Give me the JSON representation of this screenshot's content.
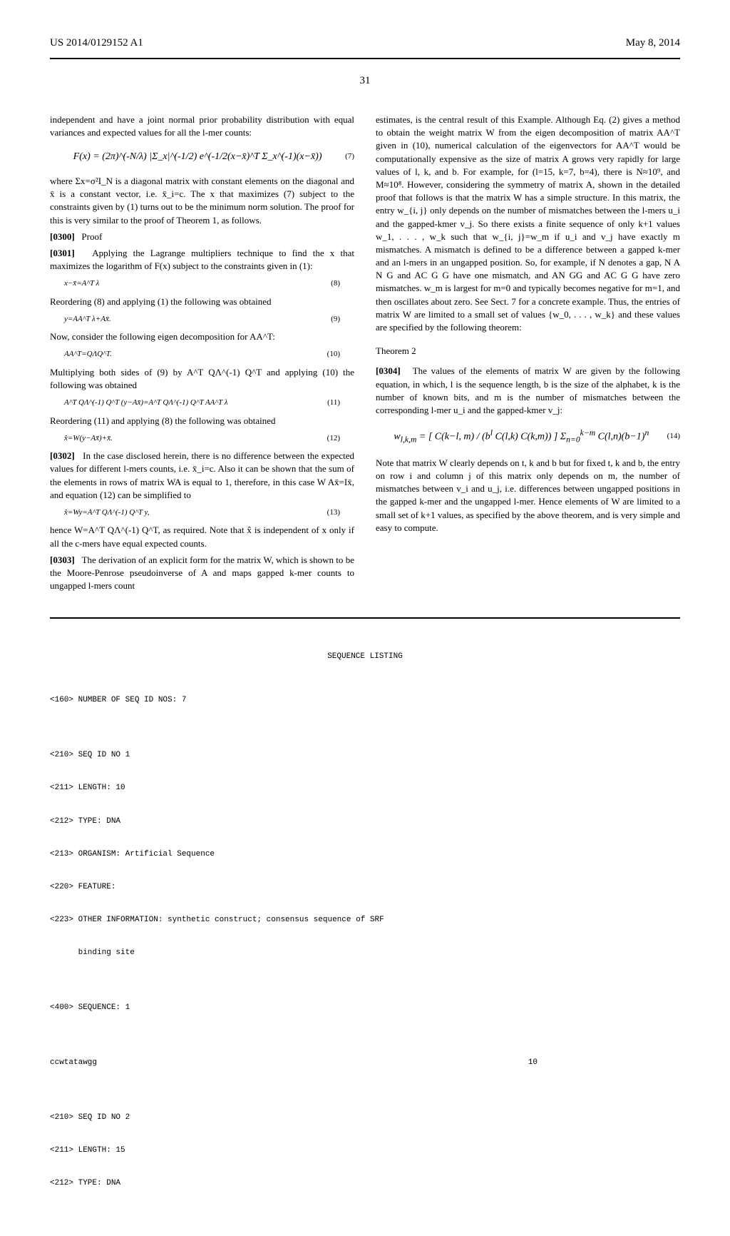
{
  "header": {
    "patent_number": "US 2014/0129152 A1",
    "date": "May 8, 2014",
    "page_number": "31"
  },
  "left_column": {
    "intro_text": "independent and have a joint normal prior probability distribution with equal variances and expected values for all the l-mer counts:",
    "eq7": "F(x) = (2π)^(-N/λ) |Σ_x|^(-1/2) e^(-1/2(x−x̄)^T Σ_x^(-1)(x−x̄))",
    "eq7_num": "(7)",
    "para_after_eq7": "where Σx=σ²I_N is a diagonal matrix with constant elements on the diagonal and x̄ is a constant vector, i.e. x̄_i=c. The x that maximizes (7) subject to the constraints given by (1) turns out to be the minimum norm solution. The proof for this is very similar to the proof of Theorem 1, as follows.",
    "para_0300_num": "[0300]",
    "para_0300": "Proof",
    "para_0301_num": "[0301]",
    "para_0301": "Applying the Lagrange multipliers technique to find the x that maximizes the logarithm of F(x) subject to the constraints given in (1):",
    "eq8": "x−x̄=A^T λ",
    "eq8_num": "(8)",
    "text_after_8": "Reordering (8) and applying (1) the following was obtained",
    "eq9": "y=AA^T λ+Ax̄.",
    "eq9_num": "(9)",
    "text_after_9": "Now, consider the following eigen decomposition for AA^T:",
    "eq10": "AA^T=QΛQ^T.",
    "eq10_num": "(10)",
    "text_after_10": "Multiplying both sides of (9) by A^T QΛ^(-1) Q^T and applying (10) the following was obtained",
    "eq11": "A^T QΛ^(-1) Q^T (y−Ax̄)=A^T QΛ^(-1) Q^T AA^T λ",
    "eq11_num": "(11)",
    "text_after_11": "Reordering (11) and applying (8) the following was obtained",
    "eq12": "x̂=W(y−Ax̄)+x̄.",
    "eq12_num": "(12)",
    "para_0302_num": "[0302]",
    "para_0302": "In the case disclosed herein, there is no difference between the expected values for different l-mers counts, i.e. x̄_i=c. Also it can be shown that the sum of the elements in rows of matrix WA is equal to 1, therefore, in this case W Ax̄=Ix̄, and equation (12) can be simplified to",
    "eq13": "x̂=Wy=A^T QΛ^(-1) Q^T y,",
    "eq13_num": "(13)",
    "text_after_13": "hence W=A^T QΛ^(-1) Q^T, as required. Note that x̂ is independent of x only if all the c-mers have equal expected counts.",
    "para_0303_num": "[0303]",
    "para_0303": "The derivation of an explicit form for the matrix W, which is shown to be the Moore-Penrose pseudoinverse of A and maps gapped k-mer counts to ungapped l-mers count"
  },
  "right_column": {
    "intro_text": "estimates, is the central result of this Example. Although Eq. (2) gives a method to obtain the weight matrix W from the eigen decomposition of matrix AA^T given in (10), numerical calculation of the eigenvectors for AA^T would be computationally expensive as the size of matrix A grows very rapidly for large values of l, k, and b. For example, for (l=15, k=7, b=4), there is N≈10⁹, and M≈10⁸. However, considering the symmetry of matrix A, shown in the detailed proof that follows is that the matrix W has a simple structure. In this matrix, the entry w_{i, j} only depends on the number of mismatches between the l-mers u_i and the gapped-kmer v_j. So there exists a finite sequence of only k+1 values w_1, . . . , w_k such that w_{i, j}=w_m if u_i and v_j have exactly m mismatches. A mismatch is defined to be a difference between a gapped k-mer and an l-mers in an ungapped position. So, for example, if N denotes a gap, N A N G and AC G G have one mismatch, and AN GG and AC G G have zero mismatches. w_m is largest for m=0 and typically becomes negative for m=1, and then oscillates about zero. See Sect. 7 for a concrete example. Thus, the entries of matrix W are limited to a small set of values {w_0, . . . , w_k} and these values are specified by the following theorem:",
    "theorem_title": "Theorem 2",
    "para_0304_num": "[0304]",
    "para_0304": "The values of the elements of matrix W are given by the following equation, in which, l is the sequence length, b is the size of the alphabet, k is the number of known bits, and m is the number of mismatches between the corresponding l-mer u_i and the gapped-kmer v_j:",
    "eq14_num": "(14)",
    "text_after_14": "Note that matrix W clearly depends on t, k and b but for fixed t, k and b, the entry on row i and column j of this matrix only depends on m, the number of mismatches between v_i and u_j, i.e. differences between ungapped positions in the gapped k-mer and the ungapped l-mer. Hence elements of W are limited to a small set of k+1 values, as specified by the above theorem, and is very simple and easy to compute."
  },
  "sequence_listing": {
    "title": "SEQUENCE LISTING",
    "line_160": "<160> NUMBER OF SEQ ID NOS: 7",
    "seq1_210": "<210> SEQ ID NO 1",
    "seq1_211": "<211> LENGTH: 10",
    "seq1_212": "<212> TYPE: DNA",
    "seq1_213": "<213> ORGANISM: Artificial Sequence",
    "seq1_220": "<220> FEATURE:",
    "seq1_223": "<223> OTHER INFORMATION: synthetic construct; consensus sequence of SRF",
    "seq1_223b": "      binding site",
    "seq1_400": "<400> SEQUENCE: 1",
    "seq1_data": "ccwtatawgg",
    "seq1_len": "10",
    "seq2_210": "<210> SEQ ID NO 2",
    "seq2_211": "<211> LENGTH: 15",
    "seq2_212": "<212> TYPE: DNA"
  }
}
